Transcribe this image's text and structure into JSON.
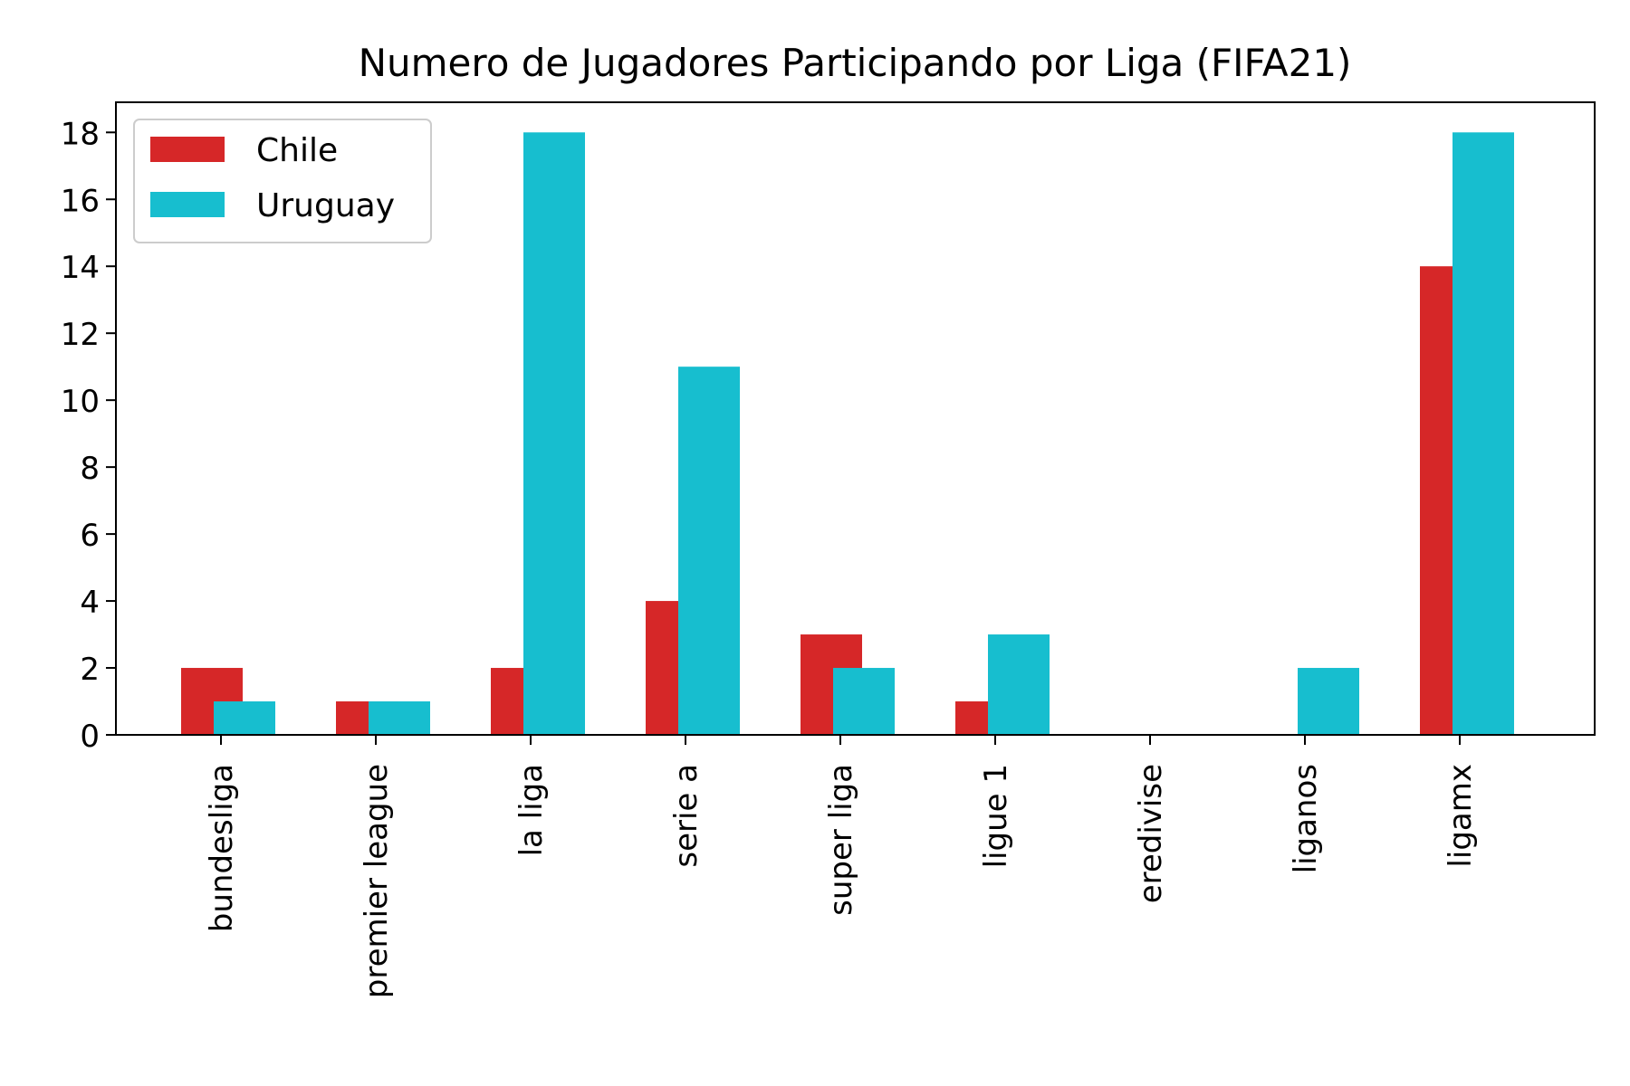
{
  "chart_data": {
    "type": "bar",
    "title": "Numero de Jugadores Participando por Liga (FIFA21)",
    "xlabel": "",
    "ylabel": "",
    "categories": [
      "bundesliga",
      "premier league",
      "la liga",
      "serie a",
      "super liga",
      "ligue 1",
      "eredivise",
      "liganos",
      "ligamx"
    ],
    "series": [
      {
        "name": "Chile",
        "color": "#d62728",
        "values": [
          2,
          1,
          2,
          4,
          3,
          1,
          0,
          0,
          14
        ]
      },
      {
        "name": "Uruguay",
        "color": "#17becf",
        "values": [
          1,
          1,
          18,
          11,
          2,
          3,
          0,
          2,
          18
        ]
      }
    ],
    "ylim": [
      0,
      18.9
    ],
    "yticks": [
      "0",
      "2",
      "4",
      "6",
      "8",
      "10",
      "12",
      "14",
      "16",
      "18"
    ],
    "grid": false,
    "legend_position": "top-left"
  }
}
